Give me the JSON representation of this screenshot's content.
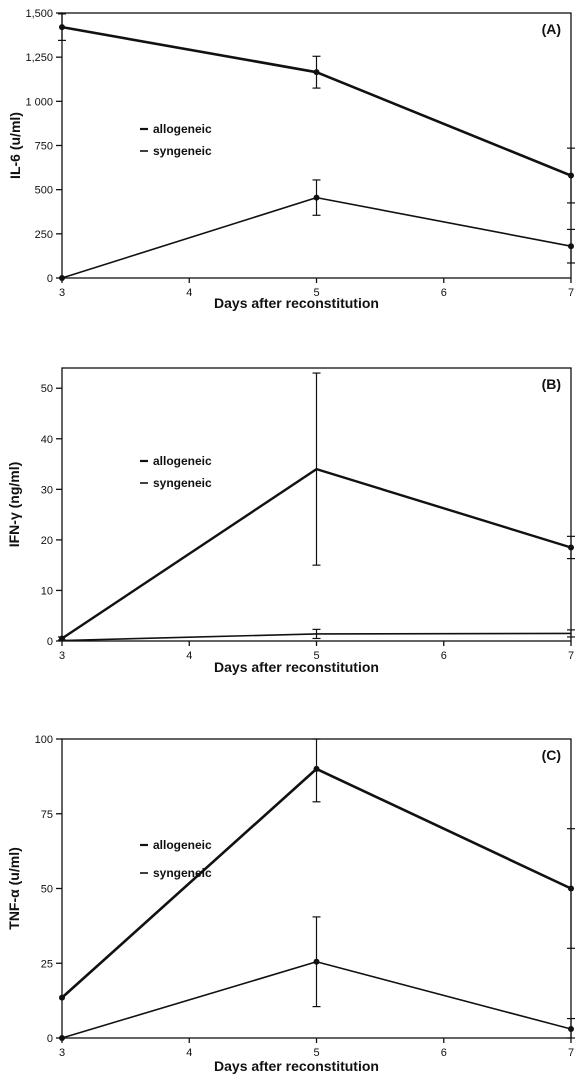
{
  "chart_data": [
    {
      "type": "line",
      "panel_label": "(A)",
      "xlabel": "Days after reconstitution",
      "ylabel": "IL-6 (u/ml)",
      "x": [
        3,
        5,
        7
      ],
      "xticks": [
        3,
        4,
        5,
        6,
        7
      ],
      "xlim": [
        3,
        7
      ],
      "ylim": [
        0,
        1500
      ],
      "yticks": [
        0,
        250,
        500,
        750,
        1000,
        1250,
        1500
      ],
      "ytick_labels": [
        "0",
        "250",
        "500",
        "750",
        "1 000",
        "1,250",
        "1,500"
      ],
      "legend_position": "upper-left",
      "series": [
        {
          "name": "allogeneic",
          "values": [
            1420,
            1165,
            580
          ],
          "errors": [
            75,
            90,
            155
          ],
          "stroke_width": 2.6,
          "markers": [
            true,
            true,
            true
          ]
        },
        {
          "name": "syngeneic",
          "values": [
            0,
            455,
            180
          ],
          "errors": [
            0,
            100,
            95
          ],
          "stroke_width": 1.6,
          "markers": [
            true,
            true,
            true
          ]
        }
      ]
    },
    {
      "type": "line",
      "panel_label": "(B)",
      "xlabel": "Days after reconstitution",
      "ylabel": "IFN-γ (ng/ml)",
      "x": [
        3,
        5,
        7
      ],
      "xticks": [
        3,
        4,
        5,
        6,
        7
      ],
      "xlim": [
        3,
        7
      ],
      "ylim": [
        0,
        54
      ],
      "yticks": [
        0,
        10,
        20,
        30,
        40,
        50
      ],
      "ytick_labels": [
        "0",
        "10",
        "20",
        "30",
        "40",
        "50"
      ],
      "legend_position": "upper-left",
      "series": [
        {
          "name": "allogeneic",
          "values": [
            0.5,
            34,
            18.5
          ],
          "errors": [
            0.3,
            19,
            2.2
          ],
          "stroke_width": 2.4,
          "markers": [
            true,
            false,
            true
          ]
        },
        {
          "name": "syngeneic",
          "values": [
            0.1,
            1.4,
            1.5
          ],
          "errors": [
            0,
            0.9,
            0.7
          ],
          "stroke_width": 1.6,
          "markers": [
            false,
            false,
            false
          ]
        }
      ]
    },
    {
      "type": "line",
      "panel_label": "(C)",
      "xlabel": "Days after reconstitution",
      "ylabel": "TNF-α (u/ml)",
      "x": [
        3,
        5,
        7
      ],
      "xticks": [
        3,
        4,
        5,
        6,
        7
      ],
      "xlim": [
        3,
        7
      ],
      "ylim": [
        0,
        100
      ],
      "yticks": [
        0,
        25,
        50,
        75,
        100
      ],
      "ytick_labels": [
        "0",
        "25",
        "50",
        "75",
        "100"
      ],
      "legend_position": "upper-left",
      "series": [
        {
          "name": "allogeneic",
          "values": [
            13.5,
            90,
            50
          ],
          "errors": [
            0,
            11,
            20
          ],
          "stroke_width": 2.6,
          "markers": [
            true,
            true,
            true
          ]
        },
        {
          "name": "syngeneic",
          "values": [
            0,
            25.5,
            3
          ],
          "errors": [
            0,
            15,
            3.5
          ],
          "stroke_width": 1.6,
          "markers": [
            true,
            true,
            true
          ]
        }
      ]
    }
  ]
}
